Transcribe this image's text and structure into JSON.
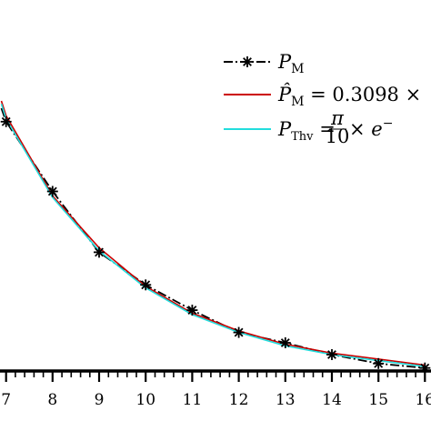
{
  "chart_data": {
    "type": "line",
    "title": "",
    "xlabel": "",
    "ylabel": "",
    "xlim": [
      6.87,
      16.13
    ],
    "ylim": [
      0.0,
      0.25
    ],
    "x_ticks": [
      "7",
      "8",
      "9",
      "10",
      "11",
      "12",
      "13",
      "14",
      "15",
      "16"
    ],
    "grid": false,
    "legend_position": "top-right",
    "series": [
      {
        "name": "P_M",
        "color": "#000000",
        "style": "dash-dot with star markers",
        "x": [
          6.9,
          7,
          8,
          9,
          10,
          11,
          12,
          13,
          14,
          15,
          16
        ],
        "y": [
          0.177,
          0.168,
          0.121,
          0.08,
          0.058,
          0.041,
          0.026,
          0.019,
          0.011,
          0.005,
          0.002
        ]
      },
      {
        "name": "P̂_M = 0.3098 ×",
        "color": "#cc0000",
        "style": "solid",
        "x": [
          6.9,
          7,
          8,
          9,
          10,
          11,
          12,
          13,
          14,
          15,
          16
        ],
        "y": [
          0.182,
          0.172,
          0.118,
          0.083,
          0.057,
          0.039,
          0.027,
          0.018,
          0.012,
          0.008,
          0.004
        ]
      },
      {
        "name": "P_Thv = π/10 × e",
        "color": "#22dddd",
        "style": "solid",
        "x": [
          6.9,
          7,
          8,
          9,
          10,
          11,
          12,
          13,
          14,
          15,
          16
        ],
        "y": [
          0.18,
          0.17,
          0.117,
          0.081,
          0.056,
          0.038,
          0.026,
          0.017,
          0.011,
          0.007,
          0.003
        ]
      }
    ],
    "legend": {
      "entry1": {
        "sym": "P",
        "sub": "M"
      },
      "entry2": {
        "sym": "P̂",
        "sub": "M",
        "rest": " = 0.3098 ×"
      },
      "entry3": {
        "sym": "P",
        "sub": "Thv",
        "eq": " = ",
        "num": "π",
        "den": "10",
        "times": " × ",
        "e": "e",
        "sup": "−"
      }
    }
  }
}
